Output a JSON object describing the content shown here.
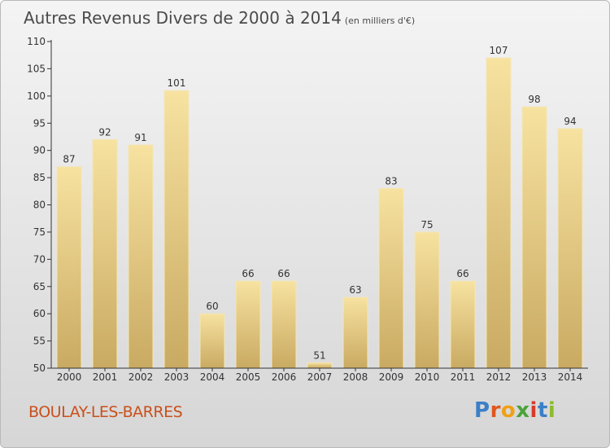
{
  "title": "Autres Revenus Divers de 2000 à 2014",
  "unit_note": "(en milliers d'€)",
  "place": "BOULAY-LES-BARRES",
  "logo": {
    "text": "Proxiti",
    "letter_colors": [
      "#3a7fc8",
      "#e0561e",
      "#f0a014",
      "#4aa33a",
      "#d83a2a",
      "#3a7fc8",
      "#8dbb2a"
    ]
  },
  "colors": {
    "bar_light": "#f7e2a0",
    "bar_dark": "#c9aa62",
    "axis": "#333333",
    "grid": "#cfcfcf",
    "title": "#4a4a4a",
    "place": "#c9501c"
  },
  "chart_data": {
    "type": "bar",
    "categories": [
      "2000",
      "2001",
      "2002",
      "2003",
      "2004",
      "2005",
      "2006",
      "2007",
      "2008",
      "2009",
      "2010",
      "2011",
      "2012",
      "2013",
      "2014"
    ],
    "values": [
      87,
      92,
      91,
      101,
      60,
      66,
      66,
      51,
      63,
      83,
      75,
      66,
      107,
      98,
      94
    ],
    "data_labels": [
      "87",
      "92",
      "91",
      "101",
      "60",
      "66",
      "66",
      "51",
      "63",
      "83",
      "75",
      "66",
      "107",
      "98",
      "94"
    ],
    "yticks": [
      50,
      55,
      60,
      65,
      70,
      75,
      80,
      85,
      90,
      95,
      100,
      105,
      110
    ],
    "ylim": [
      50,
      110
    ],
    "xlabel": "",
    "ylabel": "",
    "grid": false,
    "legend": "none"
  }
}
